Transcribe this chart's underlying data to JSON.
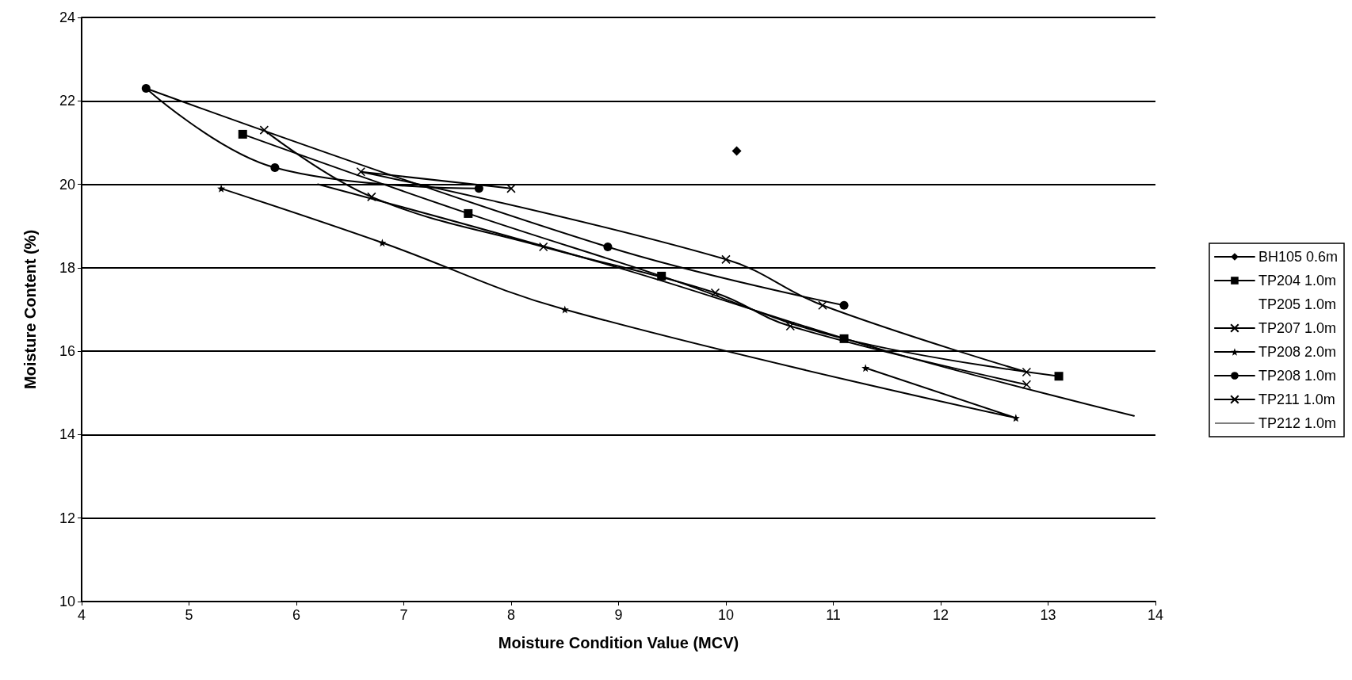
{
  "chart_data": {
    "type": "line",
    "xlabel": "Moisture Condition Value (MCV)",
    "ylabel": "Moisture Content (%)",
    "xlim": [
      4,
      14
    ],
    "xticks": [
      4,
      5,
      6,
      7,
      8,
      9,
      10,
      11,
      12,
      13,
      14
    ],
    "ylim": [
      10,
      24
    ],
    "yticks": [
      10,
      12,
      14,
      16,
      18,
      20,
      22,
      24
    ],
    "grid": "y",
    "legend": "right",
    "line_style": "solid",
    "series": [
      {
        "name": "BH105 0.6m",
        "color": "#000000",
        "marker": "diamond",
        "x": [
          10.1
        ],
        "values": [
          20.8
        ]
      },
      {
        "name": "TP204 1.0m",
        "color": "#000000",
        "marker": "square",
        "x": [
          5.5,
          7.6,
          9.4,
          11.1,
          13.1
        ],
        "values": [
          21.2,
          19.3,
          17.8,
          16.3,
          15.4
        ]
      },
      {
        "name": "TP205 1.0m",
        "color": "#000000",
        "marker": "none"
      },
      {
        "name": "TP207 1.0m",
        "color": "#000000",
        "marker": "cross",
        "x": [
          8.0,
          6.6,
          10.0,
          10.9,
          12.8
        ],
        "values": [
          19.9,
          20.3,
          18.2,
          17.1,
          15.5
        ]
      },
      {
        "name": "TP208 2.0m",
        "color": "#000000",
        "marker": "star",
        "x": [
          5.3,
          6.8,
          8.5,
          12.7,
          11.3
        ],
        "values": [
          19.9,
          18.6,
          17.0,
          14.4,
          15.6
        ]
      },
      {
        "name": "TP208 1.0m",
        "color": "#000000",
        "marker": "circle",
        "x": [
          7.7,
          5.8,
          4.6,
          8.9,
          11.1
        ],
        "values": [
          19.9,
          20.4,
          22.3,
          18.5,
          17.1
        ]
      },
      {
        "name": "TP211 1.0m",
        "color": "#000000",
        "marker": "cross",
        "x": [
          5.7,
          6.7,
          8.3,
          9.9,
          10.6,
          12.8
        ],
        "values": [
          21.3,
          19.7,
          18.5,
          17.4,
          16.6,
          15.2
        ]
      },
      {
        "name": "TP212 1.0m",
        "color": "#000000",
        "marker": "none",
        "x": [
          6.2,
          9.0,
          11.5,
          13.8
        ],
        "values": [
          20.0,
          18.0,
          16.0,
          14.45
        ]
      }
    ]
  }
}
